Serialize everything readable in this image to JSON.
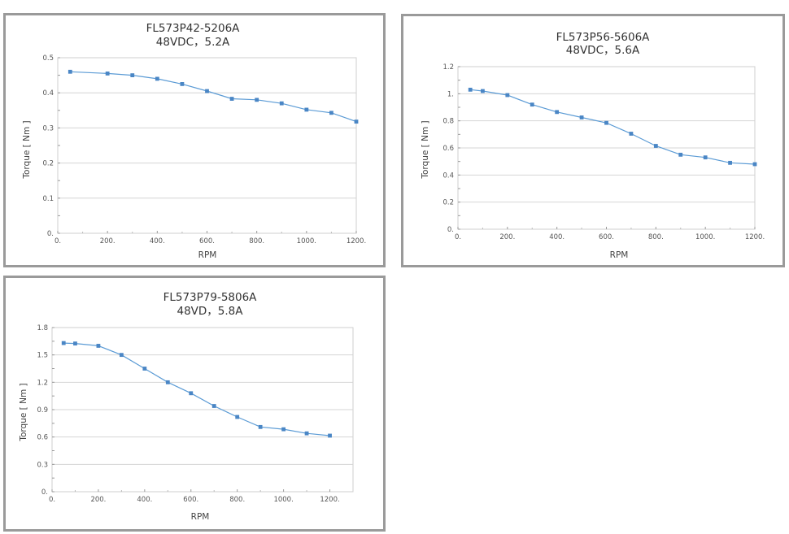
{
  "colors": {
    "line": "#5b9bd5",
    "marker": "#4a86c5",
    "grid": "#d4d4d4",
    "frame": "#9a9a9a",
    "plot_border": "#cfcfcf"
  },
  "chart_data": [
    {
      "type": "line",
      "title": "FL573P42-5206A",
      "subtitle": "48VDC，5.2A",
      "xlabel": "RPM",
      "ylabel": "Torque [ Nm ]",
      "xlim": [
        0,
        1200
      ],
      "ylim": [
        0,
        0.5
      ],
      "grid": "horizontal",
      "x_ticks": [
        "0.",
        "200.",
        "400.",
        "600.",
        "800.",
        "1000.",
        "1200."
      ],
      "y_ticks": [
        "0.",
        "0.1",
        "0.2",
        "0.3",
        "0.4",
        "0.5"
      ],
      "series": [
        {
          "x": [
            50,
            200,
            300,
            400,
            500,
            600,
            700,
            800,
            900,
            1000,
            1100,
            1200
          ],
          "values": [
            0.46,
            0.455,
            0.45,
            0.44,
            0.425,
            0.405,
            0.383,
            0.38,
            0.37,
            0.352,
            0.343,
            0.318
          ]
        }
      ]
    },
    {
      "type": "line",
      "title": "FL573P56-5606A",
      "subtitle": "48VDC，5.6A",
      "xlabel": "RPM",
      "ylabel": "Torque [ Nm ]",
      "xlim": [
        0,
        1200
      ],
      "ylim": [
        0,
        1.2
      ],
      "grid": "horizontal",
      "x_ticks": [
        "0.",
        "200.",
        "400.",
        "600.",
        "800.",
        "1000.",
        "1200."
      ],
      "y_ticks": [
        "0.",
        "0.2",
        "0.4",
        "0.6",
        "0.8",
        "1.",
        "1.2"
      ],
      "series": [
        {
          "x": [
            50,
            100,
            200,
            300,
            400,
            500,
            600,
            700,
            800,
            900,
            1000,
            1100,
            1200
          ],
          "values": [
            1.03,
            1.02,
            0.99,
            0.92,
            0.865,
            0.825,
            0.785,
            0.705,
            0.615,
            0.55,
            0.53,
            0.49,
            0.48
          ]
        }
      ]
    },
    {
      "type": "line",
      "title": "FL573P79-5806A",
      "subtitle": "48VD，5.8A",
      "xlabel": "RPM",
      "ylabel": "Torque [ Nm ]",
      "xlim": [
        0,
        1300
      ],
      "ylim": [
        0,
        1.8
      ],
      "grid": "horizontal",
      "x_ticks": [
        "0.",
        "200.",
        "400.",
        "600.",
        "800.",
        "1000.",
        "1200."
      ],
      "y_ticks": [
        "0.",
        "0.3",
        "0.6",
        "0.9",
        "1.2",
        "1.5",
        "1.8"
      ],
      "series": [
        {
          "x": [
            50,
            100,
            200,
            300,
            400,
            500,
            600,
            700,
            800,
            900,
            1000,
            1100,
            1200
          ],
          "values": [
            1.63,
            1.625,
            1.6,
            1.5,
            1.35,
            1.2,
            1.08,
            0.94,
            0.82,
            0.71,
            0.685,
            0.64,
            0.615
          ]
        }
      ]
    }
  ]
}
